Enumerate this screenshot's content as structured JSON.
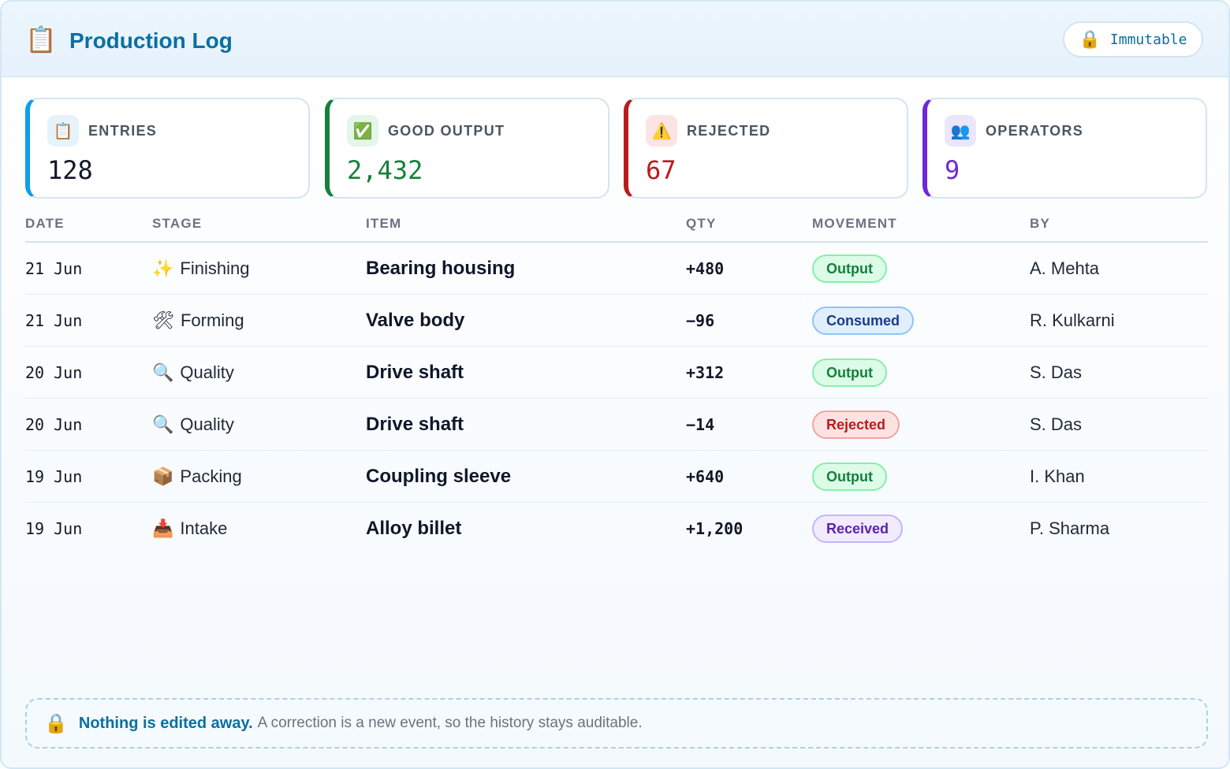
{
  "header": {
    "icon": "clipboard-icon",
    "title": "Production Log",
    "immutable_label": "Immutable",
    "immutable_icon": "lock-icon"
  },
  "stats": [
    {
      "label": "ENTRIES",
      "value": "128",
      "icon": "clipboard-icon",
      "accent": "#0e9ee9",
      "value_color": "#111827",
      "icon_bg": "#e6f3fc"
    },
    {
      "label": "GOOD OUTPUT",
      "value": "2,432",
      "icon": "check-box-icon",
      "accent": "#15803d",
      "value_color": "#15803d",
      "icon_bg": "#e3f6e9"
    },
    {
      "label": "REJECTED",
      "value": "67",
      "icon": "warning-icon",
      "accent": "#b91c1c",
      "value_color": "#b91c1c",
      "icon_bg": "#fde4e4"
    },
    {
      "label": "OPERATORS",
      "value": "9",
      "icon": "people-icon",
      "accent": "#6d28d9",
      "value_color": "#6d28d9",
      "icon_bg": "#ece6fb"
    }
  ],
  "table": {
    "headers": {
      "date": "DATE",
      "stage": "STAGE",
      "item": "ITEM",
      "qty": "QTY",
      "movement": "MOVEMENT",
      "by": "BY"
    },
    "rows": [
      {
        "date": "21 Jun",
        "stage": "Finishing",
        "stage_icon": "sparkles-icon",
        "item": "Bearing housing",
        "qty": "+480",
        "movement": "Output",
        "by": "A. Mehta"
      },
      {
        "date": "21 Jun",
        "stage": "Forming",
        "stage_icon": "tools-icon",
        "item": "Valve body",
        "qty": "−96",
        "movement": "Consumed",
        "by": "R. Kulkarni"
      },
      {
        "date": "20 Jun",
        "stage": "Quality",
        "stage_icon": "magnifier-icon",
        "item": "Drive shaft",
        "qty": "+312",
        "movement": "Output",
        "by": "S. Das"
      },
      {
        "date": "20 Jun",
        "stage": "Quality",
        "stage_icon": "magnifier-icon",
        "item": "Drive shaft",
        "qty": "−14",
        "movement": "Rejected",
        "by": "S. Das"
      },
      {
        "date": "19 Jun",
        "stage": "Packing",
        "stage_icon": "package-icon",
        "item": "Coupling sleeve",
        "qty": "+640",
        "movement": "Output",
        "by": "I. Khan"
      },
      {
        "date": "19 Jun",
        "stage": "Intake",
        "stage_icon": "inbox-icon",
        "item": "Alloy billet",
        "qty": "+1,200",
        "movement": "Received",
        "by": "P. Sharma"
      }
    ]
  },
  "footer": {
    "icon": "lock-icon",
    "strong": "Nothing is edited away.",
    "text": "A correction is a new event, so the history stays auditable."
  }
}
